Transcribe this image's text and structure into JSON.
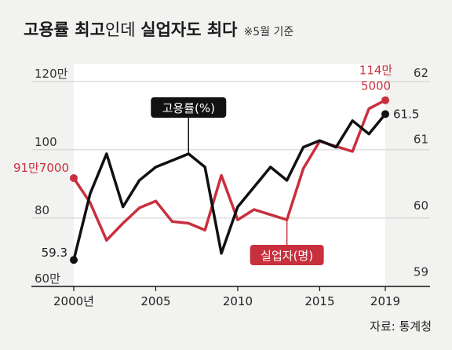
{
  "title": {
    "bold1": "고용률 최고",
    "light": "인데",
    "bold2": "실업자도 최다",
    "note": "※5월 기준"
  },
  "source": "자료: 통계청",
  "colors": {
    "employment": "#111111",
    "unemployed": "#c8303e",
    "axis": "#111111",
    "grid": "#cfcfcf",
    "plot_bg": "#ffffff",
    "page_bg": "#f2f2f0"
  },
  "chart_data": {
    "type": "line",
    "x": [
      2000,
      2001,
      2002,
      2003,
      2004,
      2005,
      2006,
      2007,
      2008,
      2009,
      2010,
      2011,
      2012,
      2013,
      2014,
      2015,
      2016,
      2017,
      2018,
      2019
    ],
    "xticks": [
      2000,
      2005,
      2010,
      2015,
      2019
    ],
    "xtick_labels": [
      "2000년",
      "2005",
      "2010",
      "2015",
      "2019"
    ],
    "left_axis": {
      "ticks": [
        60,
        80,
        100,
        120
      ],
      "tick_labels": [
        "60만",
        "80",
        "100",
        "120만"
      ],
      "range": [
        60,
        125
      ]
    },
    "right_axis": {
      "ticks": [
        59,
        60,
        61,
        62
      ],
      "tick_labels": [
        "59",
        "60",
        "61",
        "62"
      ],
      "range": [
        58.9,
        62.25
      ]
    },
    "series": [
      {
        "name": "고용률(%)",
        "axis": "right",
        "values": [
          59.3,
          60.3,
          60.9,
          60.1,
          60.5,
          60.7,
          60.8,
          60.9,
          60.7,
          59.4,
          60.1,
          60.4,
          60.7,
          60.5,
          61.0,
          61.1,
          61.0,
          61.4,
          61.2,
          61.5
        ]
      },
      {
        "name": "실업자(명)",
        "axis": "left",
        "values": [
          91.7,
          84.5,
          73.5,
          78.5,
          83.0,
          85.0,
          79.0,
          78.5,
          76.5,
          92.5,
          79.5,
          82.5,
          81.0,
          79.5,
          94.5,
          102.5,
          101.0,
          99.5,
          112.0,
          114.5
        ]
      }
    ],
    "annotations": {
      "unemployed_start": "91만7000",
      "unemployed_end_line1": "114만",
      "unemployed_end_line2": "5000",
      "employment_start": "59.3",
      "employment_end": "61.5"
    }
  }
}
